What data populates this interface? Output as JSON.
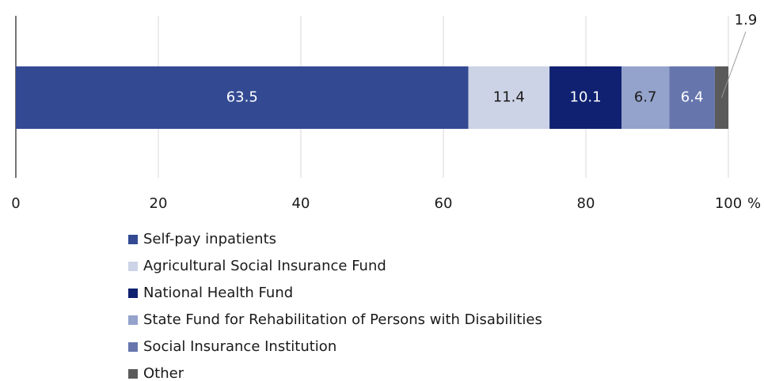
{
  "chart_data": {
    "type": "stacked_bar_horizontal",
    "series": [
      {
        "name": "Self-pay inpatients",
        "color": "#334a93",
        "values": [
          63.5
        ]
      },
      {
        "name": "Agricultural Social Insurance Fund",
        "color": "#cdd3e6",
        "values": [
          11.4
        ]
      },
      {
        "name": "National Health Fund",
        "color": "#0f2170",
        "values": [
          10.1
        ]
      },
      {
        "name": "State Fund for Rehabilitation of Persons with Disabilities",
        "color": "#94a3cc",
        "values": [
          6.7
        ]
      },
      {
        "name": "Social Insurance Institution",
        "color": "#6676ad",
        "values": [
          6.4
        ]
      },
      {
        "name": "Other",
        "color": "#5a5a5a",
        "values": [
          1.9
        ]
      }
    ],
    "xlim": [
      0,
      100
    ],
    "xticks": [
      0,
      20,
      40,
      60,
      80,
      100
    ],
    "xlabel": "%",
    "grid": true
  }
}
